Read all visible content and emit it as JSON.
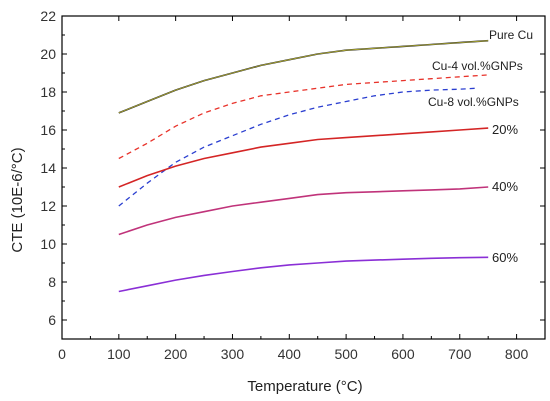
{
  "chart_data": {
    "type": "line",
    "xlabel": "Temperature (°C)",
    "ylabel": "CTE (10E-6/°C)",
    "xlim": [
      0,
      850
    ],
    "ylim": [
      5,
      22
    ],
    "xticks": [
      0,
      100,
      200,
      300,
      400,
      500,
      600,
      700,
      800
    ],
    "yticks": [
      6,
      8,
      10,
      12,
      14,
      16,
      18,
      20,
      22
    ],
    "grid": false,
    "series": [
      {
        "name": "Pure Cu",
        "color": "#1a1a1a",
        "style": "solid",
        "x": [
          100,
          150,
          200,
          250,
          300,
          350,
          400,
          450,
          500,
          550,
          600,
          650,
          700,
          750
        ],
        "y": [
          16.9,
          17.5,
          18.1,
          18.6,
          19.0,
          19.4,
          19.7,
          20.0,
          20.2,
          20.3,
          20.4,
          20.5,
          20.6,
          20.7
        ]
      },
      {
        "name": "Cu-4 vol.%GNPs",
        "color": "#e8332b",
        "style": "dashed",
        "x": [
          100,
          150,
          200,
          250,
          300,
          350,
          400,
          450,
          500,
          550,
          600,
          650,
          700,
          750
        ],
        "y": [
          14.5,
          15.3,
          16.2,
          16.9,
          17.4,
          17.8,
          18.0,
          18.2,
          18.4,
          18.5,
          18.6,
          18.7,
          18.8,
          18.9
        ]
      },
      {
        "name": "Cu-8 vol.%GNPs",
        "color": "#2b3fd0",
        "style": "dashed",
        "x": [
          100,
          150,
          200,
          250,
          300,
          350,
          400,
          450,
          500,
          550,
          600,
          650,
          700,
          730
        ],
        "y": [
          12.0,
          13.2,
          14.3,
          15.1,
          15.7,
          16.3,
          16.8,
          17.2,
          17.5,
          17.8,
          18.0,
          18.1,
          18.15,
          18.2
        ]
      },
      {
        "name": "20%",
        "color": "#d42525",
        "style": "solid",
        "x": [
          100,
          150,
          200,
          250,
          300,
          350,
          400,
          450,
          500,
          550,
          600,
          650,
          700,
          750
        ],
        "y": [
          13.0,
          13.6,
          14.1,
          14.5,
          14.8,
          15.1,
          15.3,
          15.5,
          15.6,
          15.7,
          15.8,
          15.9,
          16.0,
          16.1
        ]
      },
      {
        "name": "40%",
        "color": "#c0337a",
        "style": "solid",
        "x": [
          100,
          150,
          200,
          250,
          300,
          350,
          400,
          450,
          500,
          550,
          600,
          650,
          700,
          750
        ],
        "y": [
          10.5,
          11.0,
          11.4,
          11.7,
          12.0,
          12.2,
          12.4,
          12.6,
          12.7,
          12.75,
          12.8,
          12.85,
          12.9,
          13.0
        ]
      },
      {
        "name": "60%",
        "color": "#8a2fd6",
        "style": "solid",
        "x": [
          100,
          150,
          200,
          250,
          300,
          350,
          400,
          450,
          500,
          550,
          600,
          650,
          700,
          750
        ],
        "y": [
          7.5,
          7.8,
          8.1,
          8.35,
          8.55,
          8.75,
          8.9,
          9.0,
          9.1,
          9.15,
          9.2,
          9.25,
          9.28,
          9.3
        ]
      }
    ]
  }
}
